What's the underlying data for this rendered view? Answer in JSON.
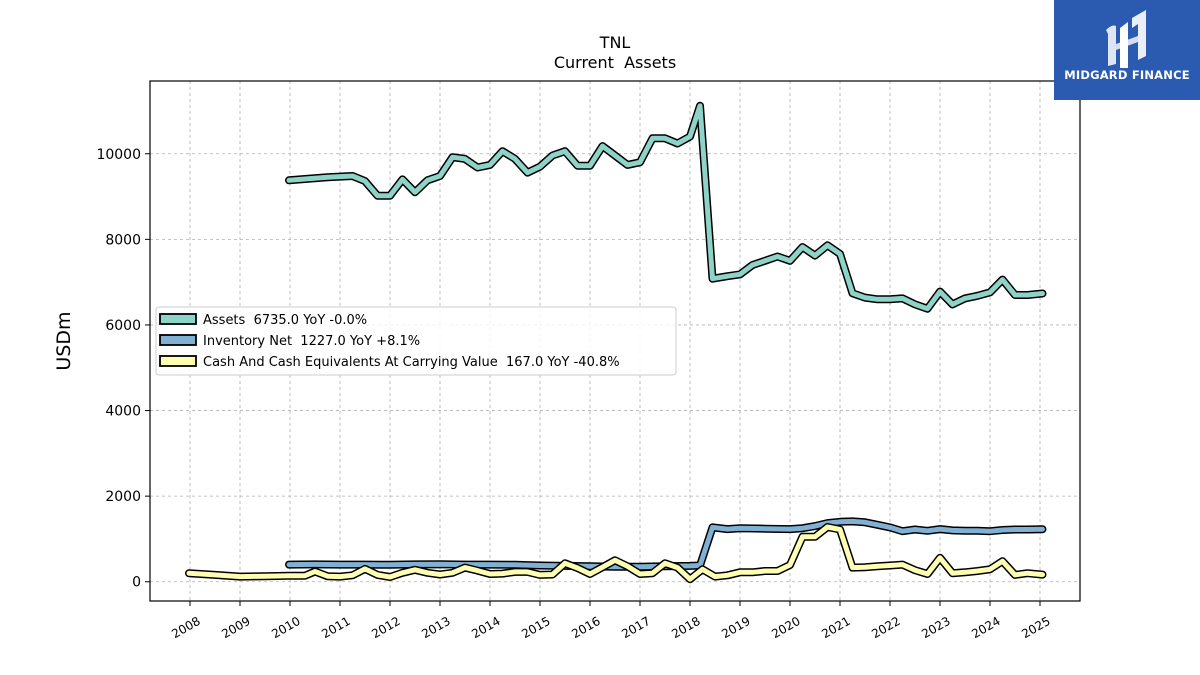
{
  "brand": {
    "name": "MIDGARD FINANCE",
    "color": "#2a5bb0",
    "icon": "midgard-logo-icon"
  },
  "chart_data": {
    "type": "line",
    "title": "TNL",
    "subtitle": "Current  Assets",
    "xlabel": "",
    "ylabel": "USDm",
    "xlim": [
      2007.2,
      2025.8
    ],
    "ylim": [
      -450,
      11700
    ],
    "yticks": [
      0,
      2000,
      4000,
      6000,
      8000,
      10000
    ],
    "xticks": [
      "2008",
      "2009",
      "2010",
      "2011",
      "2012",
      "2013",
      "2014",
      "2015",
      "2016",
      "2017",
      "2018",
      "2019",
      "2020",
      "2021",
      "2022",
      "2023",
      "2024",
      "2025"
    ],
    "grid": true,
    "legend_position": "center-left",
    "series": [
      {
        "name": "Assets  6735.0 YoY -0.0%",
        "color": "#8dd3c7",
        "points": [
          [
            2009.98,
            9380
          ],
          [
            2010.75,
            9450
          ],
          [
            2011.25,
            9480
          ],
          [
            2011.5,
            9360
          ],
          [
            2011.75,
            9020
          ],
          [
            2012.0,
            9020
          ],
          [
            2012.25,
            9400
          ],
          [
            2012.5,
            9100
          ],
          [
            2012.75,
            9380
          ],
          [
            2013.0,
            9480
          ],
          [
            2013.25,
            9920
          ],
          [
            2013.5,
            9880
          ],
          [
            2013.75,
            9680
          ],
          [
            2014.0,
            9740
          ],
          [
            2014.25,
            10060
          ],
          [
            2014.5,
            9880
          ],
          [
            2014.75,
            9560
          ],
          [
            2015.0,
            9700
          ],
          [
            2015.25,
            9960
          ],
          [
            2015.5,
            10060
          ],
          [
            2015.75,
            9720
          ],
          [
            2016.0,
            9720
          ],
          [
            2016.25,
            10180
          ],
          [
            2016.5,
            9960
          ],
          [
            2016.75,
            9740
          ],
          [
            2017.0,
            9800
          ],
          [
            2017.25,
            10360
          ],
          [
            2017.5,
            10360
          ],
          [
            2017.75,
            10240
          ],
          [
            2018.0,
            10400
          ],
          [
            2018.2,
            11120
          ],
          [
            2018.45,
            7080
          ],
          [
            2018.75,
            7140
          ],
          [
            2019.0,
            7180
          ],
          [
            2019.25,
            7400
          ],
          [
            2019.5,
            7500
          ],
          [
            2019.75,
            7600
          ],
          [
            2020.0,
            7500
          ],
          [
            2020.25,
            7820
          ],
          [
            2020.5,
            7620
          ],
          [
            2020.75,
            7860
          ],
          [
            2021.0,
            7660
          ],
          [
            2021.25,
            6740
          ],
          [
            2021.5,
            6640
          ],
          [
            2021.75,
            6600
          ],
          [
            2022.0,
            6600
          ],
          [
            2022.25,
            6620
          ],
          [
            2022.5,
            6480
          ],
          [
            2022.75,
            6380
          ],
          [
            2023.0,
            6780
          ],
          [
            2023.25,
            6480
          ],
          [
            2023.5,
            6620
          ],
          [
            2023.75,
            6680
          ],
          [
            2024.0,
            6760
          ],
          [
            2024.25,
            7060
          ],
          [
            2024.5,
            6700
          ],
          [
            2024.75,
            6700
          ],
          [
            2025.05,
            6735
          ]
        ]
      },
      {
        "name": "Inventory Net  1227.0 YoY +8.1%",
        "color": "#80b1d3",
        "points": [
          [
            2009.98,
            400
          ],
          [
            2010.5,
            405
          ],
          [
            2011.0,
            400
          ],
          [
            2011.5,
            400
          ],
          [
            2012.0,
            395
          ],
          [
            2012.5,
            405
          ],
          [
            2013.0,
            410
          ],
          [
            2013.5,
            400
          ],
          [
            2014.0,
            400
          ],
          [
            2014.5,
            395
          ],
          [
            2015.0,
            380
          ],
          [
            2015.5,
            370
          ],
          [
            2016.0,
            360
          ],
          [
            2016.5,
            350
          ],
          [
            2017.0,
            350
          ],
          [
            2017.5,
            360
          ],
          [
            2018.0,
            370
          ],
          [
            2018.2,
            380
          ],
          [
            2018.45,
            1270
          ],
          [
            2018.75,
            1230
          ],
          [
            2019.0,
            1250
          ],
          [
            2019.5,
            1240
          ],
          [
            2020.0,
            1230
          ],
          [
            2020.25,
            1250
          ],
          [
            2020.5,
            1300
          ],
          [
            2020.75,
            1370
          ],
          [
            2021.0,
            1400
          ],
          [
            2021.25,
            1410
          ],
          [
            2021.5,
            1390
          ],
          [
            2021.75,
            1330
          ],
          [
            2022.0,
            1270
          ],
          [
            2022.25,
            1180
          ],
          [
            2022.5,
            1220
          ],
          [
            2022.75,
            1190
          ],
          [
            2023.0,
            1230
          ],
          [
            2023.25,
            1200
          ],
          [
            2023.5,
            1190
          ],
          [
            2023.75,
            1190
          ],
          [
            2024.0,
            1180
          ],
          [
            2024.25,
            1210
          ],
          [
            2024.5,
            1220
          ],
          [
            2024.75,
            1220
          ],
          [
            2025.05,
            1227
          ]
        ]
      },
      {
        "name": "Cash And Cash Equivalents At Carrying Value  167.0 YoY -40.8%",
        "color": "#ffffb3",
        "points": [
          [
            2007.98,
            200
          ],
          [
            2008.5,
            160
          ],
          [
            2009.0,
            120
          ],
          [
            2009.5,
            130
          ],
          [
            2009.98,
            140
          ],
          [
            2010.3,
            140
          ],
          [
            2010.5,
            240
          ],
          [
            2010.75,
            130
          ],
          [
            2011.0,
            120
          ],
          [
            2011.25,
            150
          ],
          [
            2011.5,
            300
          ],
          [
            2011.75,
            160
          ],
          [
            2012.0,
            110
          ],
          [
            2012.25,
            210
          ],
          [
            2012.5,
            280
          ],
          [
            2012.75,
            210
          ],
          [
            2013.0,
            170
          ],
          [
            2013.25,
            210
          ],
          [
            2013.5,
            330
          ],
          [
            2013.75,
            260
          ],
          [
            2014.0,
            180
          ],
          [
            2014.25,
            190
          ],
          [
            2014.5,
            230
          ],
          [
            2014.75,
            230
          ],
          [
            2015.0,
            160
          ],
          [
            2015.25,
            170
          ],
          [
            2015.5,
            430
          ],
          [
            2015.75,
            320
          ],
          [
            2016.0,
            180
          ],
          [
            2016.25,
            340
          ],
          [
            2016.5,
            500
          ],
          [
            2016.75,
            360
          ],
          [
            2017.0,
            180
          ],
          [
            2017.25,
            200
          ],
          [
            2017.5,
            430
          ],
          [
            2017.75,
            330
          ],
          [
            2018.0,
            60
          ],
          [
            2018.25,
            290
          ],
          [
            2018.5,
            120
          ],
          [
            2018.75,
            150
          ],
          [
            2019.0,
            220
          ],
          [
            2019.25,
            220
          ],
          [
            2019.5,
            250
          ],
          [
            2019.75,
            250
          ],
          [
            2020.0,
            390
          ],
          [
            2020.25,
            1050
          ],
          [
            2020.5,
            1050
          ],
          [
            2020.75,
            1280
          ],
          [
            2021.0,
            1220
          ],
          [
            2021.25,
            330
          ],
          [
            2021.5,
            340
          ],
          [
            2021.75,
            360
          ],
          [
            2022.0,
            380
          ],
          [
            2022.25,
            400
          ],
          [
            2022.5,
            270
          ],
          [
            2022.75,
            180
          ],
          [
            2023.0,
            560
          ],
          [
            2023.25,
            200
          ],
          [
            2023.5,
            220
          ],
          [
            2023.75,
            250
          ],
          [
            2024.0,
            290
          ],
          [
            2024.25,
            480
          ],
          [
            2024.5,
            160
          ],
          [
            2024.75,
            200
          ],
          [
            2025.05,
            167
          ]
        ]
      }
    ]
  }
}
